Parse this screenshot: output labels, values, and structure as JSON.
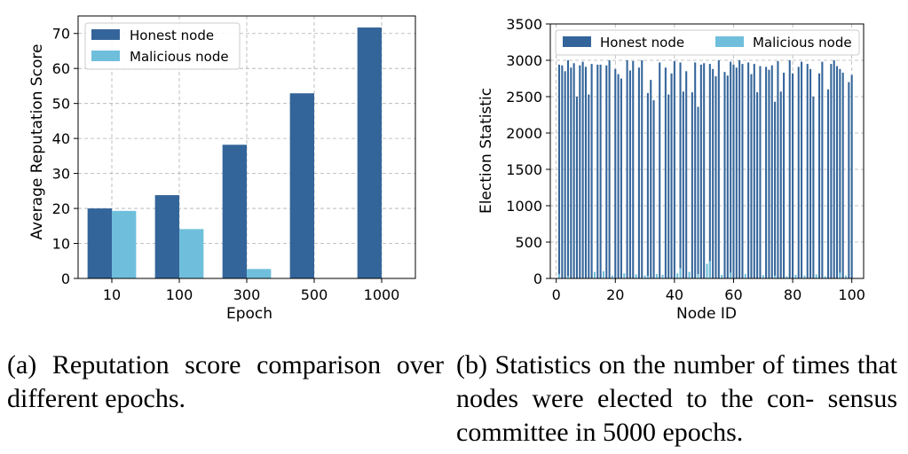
{
  "chart_data": [
    {
      "type": "bar",
      "title": "",
      "xlabel": "Epoch",
      "ylabel": "Average Reputation Score",
      "categories": [
        "10",
        "100",
        "300",
        "500",
        "1000"
      ],
      "ylim": [
        0,
        75
      ],
      "yticks": [
        0,
        10,
        20,
        30,
        40,
        50,
        60,
        70
      ],
      "grid": true,
      "legend": "top-left",
      "series": [
        {
          "name": "Honest node",
          "color": "#34659a",
          "values": [
            20.0,
            23.8,
            38.2,
            52.9,
            71.7
          ]
        },
        {
          "name": "Malicious node",
          "color": "#6fbfdc",
          "values": [
            19.3,
            14.1,
            2.7,
            0,
            0
          ]
        }
      ]
    },
    {
      "type": "bar",
      "title": "",
      "xlabel": "Node ID",
      "ylabel": "Election Statistic",
      "ylim": [
        0,
        3500
      ],
      "xlim": [
        -2,
        104
      ],
      "yticks": [
        0,
        500,
        1000,
        1500,
        2000,
        2500,
        3000,
        3500
      ],
      "xticks": [
        0,
        20,
        40,
        60,
        80,
        100
      ],
      "grid": true,
      "legend": "top",
      "series": [
        {
          "name": "Honest node",
          "color": "#34659a",
          "x": [
            1,
            2,
            3,
            4,
            5,
            6,
            7,
            8,
            9,
            10,
            11,
            12,
            13,
            14,
            15,
            16,
            17,
            18,
            19,
            20,
            21,
            22,
            23,
            24,
            25,
            26,
            27,
            28,
            29,
            30,
            31,
            32,
            33,
            34,
            35,
            36,
            37,
            38,
            39,
            40,
            41,
            42,
            43,
            44,
            45,
            46,
            47,
            48,
            49,
            50,
            51,
            52,
            53,
            54,
            55,
            56,
            57,
            58,
            59,
            60,
            61,
            62,
            63,
            64,
            65,
            66,
            67,
            68,
            69,
            70,
            71,
            72,
            73,
            74,
            75,
            76,
            77,
            78,
            79,
            80,
            81,
            82,
            83,
            84,
            85,
            86,
            87,
            88,
            89,
            90,
            91,
            92,
            93,
            94,
            95,
            96,
            97,
            98,
            99,
            100
          ],
          "values": [
            2940,
            2930,
            2850,
            3000,
            2900,
            2960,
            2500,
            2930,
            2980,
            2910,
            2530,
            2950,
            0,
            2940,
            2940,
            0,
            2930,
            3000,
            0,
            2880,
            2810,
            2750,
            0,
            3000,
            2860,
            2990,
            0,
            2900,
            3000,
            0,
            2550,
            2730,
            2450,
            0,
            2970,
            0,
            2900,
            2530,
            2820,
            2990,
            0,
            2970,
            2570,
            2850,
            0,
            2560,
            2970,
            2360,
            2940,
            2960,
            0,
            2950,
            2880,
            2780,
            3000,
            0,
            2840,
            2790,
            2980,
            2940,
            2900,
            3000,
            2950,
            0,
            2970,
            2810,
            2950,
            2560,
            2920,
            0,
            2910,
            2870,
            2930,
            2430,
            2990,
            2570,
            2830,
            0,
            3000,
            2820,
            0,
            2910,
            2980,
            0,
            2950,
            2880,
            2500,
            0,
            2820,
            2980,
            0,
            2600,
            2950,
            3000,
            2920,
            2880,
            2830,
            0,
            2700,
            2800
          ]
        },
        {
          "name": "Malicious node",
          "color": "#6fbfdc",
          "x": [
            1,
            4,
            13,
            16,
            19,
            23,
            27,
            30,
            31,
            34,
            36,
            41,
            42,
            45,
            48,
            51,
            52,
            56,
            59,
            64,
            70,
            74,
            78,
            81,
            84,
            88,
            91,
            96,
            98
          ],
          "values": [
            60,
            30,
            90,
            100,
            40,
            70,
            55,
            40,
            35,
            60,
            50,
            70,
            140,
            90,
            60,
            200,
            240,
            50,
            80,
            60,
            45,
            40,
            30,
            50,
            40,
            55,
            30,
            80,
            40
          ]
        }
      ]
    }
  ],
  "captions": {
    "a": "(a) Reputation score comparison over different epochs.",
    "b": "(b) Statistics on the number of times that nodes were elected to the con- sensus committee in 5000 epochs."
  }
}
